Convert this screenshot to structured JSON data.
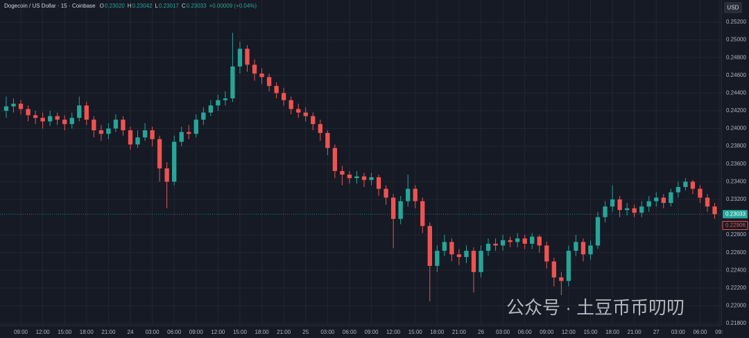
{
  "chart_data": {
    "type": "candlestick",
    "title": "Dogecoin / US Dollar · 15 · Coinbase",
    "ohlc": [
      {
        "label": "O",
        "text": "0.23020"
      },
      {
        "label": "H",
        "text": "0.23042"
      },
      {
        "label": "L",
        "text": "0.23017"
      },
      {
        "label": "C",
        "text": "0.23033"
      }
    ],
    "change": "+0.00009 (+0.04%)",
    "currency": "USD",
    "watermark": "公众号 · 土豆币币叨叨",
    "up_color": "#26a69a",
    "down_color": "#ef5350",
    "grid": true,
    "open": [
      0.242,
      0.2425,
      0.2428,
      0.2422,
      0.2415,
      0.2412,
      0.2408,
      0.2414,
      0.241,
      0.2405,
      0.2412,
      0.2426,
      0.241,
      0.2398,
      0.2394,
      0.24,
      0.241,
      0.2398,
      0.2382,
      0.239,
      0.2398,
      0.2388,
      0.2355,
      0.234,
      0.2385,
      0.2396,
      0.2394,
      0.241,
      0.2418,
      0.2426,
      0.2432,
      0.2434,
      0.247,
      0.249,
      0.2472,
      0.2462,
      0.2458,
      0.2448,
      0.244,
      0.2432,
      0.2422,
      0.2418,
      0.2414,
      0.2405,
      0.2395,
      0.2378,
      0.2352,
      0.2348,
      0.2344,
      0.2346,
      0.2342,
      0.2345,
      0.2332,
      0.2322,
      0.2298,
      0.2318,
      0.2332,
      0.2318,
      0.229,
      0.2245,
      0.2262,
      0.2272,
      0.2258,
      0.2255,
      0.2262,
      0.2238,
      0.2262,
      0.227,
      0.2268,
      0.2274,
      0.2272,
      0.2276,
      0.227,
      0.2278,
      0.2268,
      0.225,
      0.2232,
      0.2228,
      0.2262,
      0.2272,
      0.2258,
      0.2268,
      0.23,
      0.2312,
      0.232,
      0.2308,
      0.231,
      0.2305,
      0.2312,
      0.2318,
      0.2322,
      0.2316,
      0.2328,
      0.2334,
      0.234,
      0.2332,
      0.2322,
      0.2312
    ],
    "high": [
      0.2436,
      0.2434,
      0.2432,
      0.2426,
      0.242,
      0.2418,
      0.242,
      0.2418,
      0.2415,
      0.2418,
      0.2436,
      0.243,
      0.2414,
      0.2404,
      0.2406,
      0.2416,
      0.2414,
      0.2402,
      0.2398,
      0.2406,
      0.2402,
      0.2392,
      0.2362,
      0.2392,
      0.2402,
      0.2404,
      0.2416,
      0.2424,
      0.2432,
      0.2438,
      0.2442,
      0.2508,
      0.2498,
      0.2494,
      0.2478,
      0.2468,
      0.2462,
      0.2452,
      0.2446,
      0.2436,
      0.2428,
      0.2424,
      0.2418,
      0.241,
      0.2398,
      0.2382,
      0.2358,
      0.2352,
      0.2352,
      0.235,
      0.235,
      0.2348,
      0.2336,
      0.2326,
      0.2324,
      0.2348,
      0.2336,
      0.2322,
      0.2294,
      0.2268,
      0.228,
      0.2276,
      0.2264,
      0.2268,
      0.2266,
      0.2268,
      0.2276,
      0.2276,
      0.228,
      0.2278,
      0.2282,
      0.228,
      0.2282,
      0.228,
      0.2272,
      0.2254,
      0.2238,
      0.2268,
      0.228,
      0.2276,
      0.2274,
      0.2306,
      0.2318,
      0.2336,
      0.2324,
      0.2316,
      0.2314,
      0.2318,
      0.2324,
      0.2328,
      0.2326,
      0.2332,
      0.234,
      0.2344,
      0.2342,
      0.2336,
      0.2326,
      0.2316
    ],
    "low": [
      0.2412,
      0.2418,
      0.2416,
      0.2408,
      0.2405,
      0.24,
      0.2403,
      0.2404,
      0.2398,
      0.24,
      0.2408,
      0.2404,
      0.239,
      0.2386,
      0.2388,
      0.2396,
      0.2392,
      0.2376,
      0.2378,
      0.2386,
      0.238,
      0.234,
      0.231,
      0.2336,
      0.238,
      0.2388,
      0.239,
      0.2404,
      0.2414,
      0.242,
      0.2426,
      0.243,
      0.2462,
      0.2464,
      0.2454,
      0.245,
      0.2442,
      0.2434,
      0.2426,
      0.2416,
      0.2412,
      0.2408,
      0.2398,
      0.2386,
      0.237,
      0.2344,
      0.2336,
      0.2338,
      0.2338,
      0.2334,
      0.2336,
      0.2324,
      0.2314,
      0.2265,
      0.2292,
      0.2312,
      0.231,
      0.2282,
      0.2205,
      0.2238,
      0.2256,
      0.225,
      0.2246,
      0.2248,
      0.2215,
      0.2232,
      0.2256,
      0.2262,
      0.2262,
      0.2266,
      0.2266,
      0.2264,
      0.2264,
      0.226,
      0.2242,
      0.2222,
      0.2212,
      0.2222,
      0.2256,
      0.225,
      0.2252,
      0.2264,
      0.2294,
      0.2306,
      0.23,
      0.2302,
      0.23,
      0.23,
      0.2306,
      0.2312,
      0.231,
      0.2312,
      0.2322,
      0.233,
      0.2326,
      0.2316,
      0.2306,
      0.2298
    ],
    "close": [
      0.2425,
      0.2428,
      0.2422,
      0.2415,
      0.2412,
      0.2408,
      0.2414,
      0.241,
      0.2405,
      0.2412,
      0.2426,
      0.241,
      0.2398,
      0.2394,
      0.24,
      0.241,
      0.2398,
      0.2382,
      0.239,
      0.2398,
      0.2388,
      0.2355,
      0.234,
      0.2385,
      0.2396,
      0.2394,
      0.241,
      0.2418,
      0.2426,
      0.2432,
      0.2434,
      0.247,
      0.249,
      0.2472,
      0.2462,
      0.2458,
      0.2448,
      0.244,
      0.2432,
      0.2422,
      0.2418,
      0.2414,
      0.2405,
      0.2395,
      0.2378,
      0.2352,
      0.2348,
      0.2344,
      0.2346,
      0.2342,
      0.2345,
      0.2332,
      0.2322,
      0.2298,
      0.2318,
      0.2332,
      0.2318,
      0.229,
      0.2245,
      0.2262,
      0.2272,
      0.2258,
      0.2255,
      0.2262,
      0.2238,
      0.2262,
      0.227,
      0.2268,
      0.2274,
      0.2272,
      0.2276,
      0.227,
      0.2278,
      0.2268,
      0.225,
      0.2232,
      0.2228,
      0.2262,
      0.2272,
      0.2258,
      0.2268,
      0.23,
      0.2312,
      0.232,
      0.2308,
      0.231,
      0.2305,
      0.2312,
      0.2318,
      0.2322,
      0.2316,
      0.2328,
      0.2334,
      0.234,
      0.2332,
      0.2322,
      0.2312,
      0.23033
    ],
    "xlim": [
      -0.85,
      97.9
    ],
    "xticks": [
      {
        "value": 2,
        "label": "09:00"
      },
      {
        "value": 5,
        "label": "12:00"
      },
      {
        "value": 8,
        "label": "15:00"
      },
      {
        "value": 11,
        "label": "18:00"
      },
      {
        "value": 14,
        "label": "21:00"
      },
      {
        "value": 17,
        "label": "24"
      },
      {
        "value": 20,
        "label": "03:00"
      },
      {
        "value": 23,
        "label": "06:00"
      },
      {
        "value": 26,
        "label": "09:00"
      },
      {
        "value": 29,
        "label": "12:00"
      },
      {
        "value": 32,
        "label": "15:00"
      },
      {
        "value": 35,
        "label": "18:00"
      },
      {
        "value": 38,
        "label": "21:00"
      },
      {
        "value": 41,
        "label": "25"
      },
      {
        "value": 44,
        "label": "03:00"
      },
      {
        "value": 47,
        "label": "06:00"
      },
      {
        "value": 50,
        "label": "09:00"
      },
      {
        "value": 53,
        "label": "12:00"
      },
      {
        "value": 56,
        "label": "15:00"
      },
      {
        "value": 59,
        "label": "18:00"
      },
      {
        "value": 62,
        "label": "21:00"
      },
      {
        "value": 65,
        "label": "26"
      },
      {
        "value": 68,
        "label": "03:00"
      },
      {
        "value": 71,
        "label": "06:00"
      },
      {
        "value": 74,
        "label": "09:00"
      },
      {
        "value": 77,
        "label": "12:00"
      },
      {
        "value": 80,
        "label": "15:00"
      },
      {
        "value": 83,
        "label": "18:00"
      },
      {
        "value": 86,
        "label": "21:00"
      },
      {
        "value": 89,
        "label": "27"
      },
      {
        "value": 92,
        "label": "03:00"
      },
      {
        "value": 95,
        "label": "06:00"
      },
      {
        "value": 97.6,
        "label": "09:"
      }
    ],
    "ylim": [
      0.21777,
      0.2545
    ],
    "yticks": [
      {
        "value": 0.252,
        "label": "0.25200"
      },
      {
        "value": 0.25,
        "label": "0.25000"
      },
      {
        "value": 0.248,
        "label": "0.24800"
      },
      {
        "value": 0.246,
        "label": "0.24600"
      },
      {
        "value": 0.244,
        "label": "0.24400"
      },
      {
        "value": 0.242,
        "label": "0.24200"
      },
      {
        "value": 0.24,
        "label": "0.24000"
      },
      {
        "value": 0.238,
        "label": "0.23800"
      },
      {
        "value": 0.236,
        "label": "0.23600"
      },
      {
        "value": 0.234,
        "label": "0.23400"
      },
      {
        "value": 0.232,
        "label": "0.23200"
      },
      {
        "value": 0.228,
        "label": "0.22800"
      },
      {
        "value": 0.226,
        "label": "0.22600"
      },
      {
        "value": 0.224,
        "label": "0.22400"
      },
      {
        "value": 0.222,
        "label": "0.22200"
      },
      {
        "value": 0.22,
        "label": "0.22000"
      },
      {
        "value": 0.218,
        "label": "0.21800"
      }
    ],
    "last_price": {
      "value": 0.23033,
      "label": "0.23033"
    },
    "other_price": {
      "value": 0.22906,
      "label": "0.22906"
    }
  }
}
